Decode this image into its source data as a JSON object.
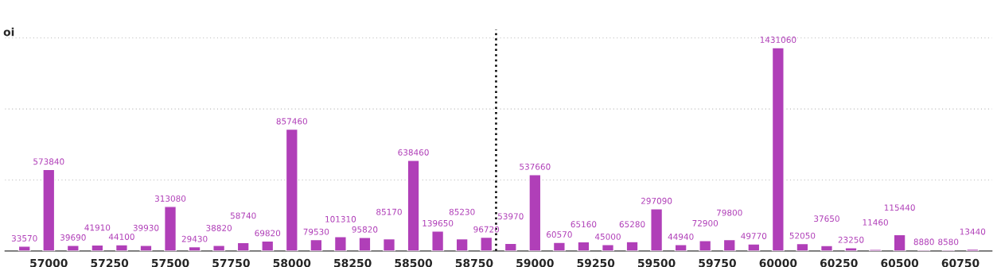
{
  "chart_data": {
    "type": "bar",
    "ylabel": "oi",
    "x": [
      56900,
      57000,
      57100,
      57200,
      57300,
      57400,
      57500,
      57600,
      57700,
      57800,
      57900,
      58000,
      58100,
      58200,
      58300,
      58400,
      58500,
      58600,
      58700,
      58800,
      58900,
      59000,
      59100,
      59200,
      59300,
      59400,
      59500,
      59600,
      59700,
      59800,
      59900,
      60000,
      60100,
      60200,
      60300,
      60400,
      60500,
      60600,
      60700,
      60800
    ],
    "values": [
      33570,
      573840,
      39690,
      41910,
      44100,
      39930,
      313080,
      29430,
      38820,
      58740,
      69820,
      857460,
      79530,
      101310,
      95820,
      85170,
      638460,
      139650,
      85230,
      96720,
      53970,
      537660,
      60570,
      65160,
      45000,
      65280,
      297090,
      44940,
      72900,
      79800,
      49770,
      1431060,
      52050,
      37650,
      23250,
      11460,
      115440,
      8880,
      8580,
      13440
    ],
    "color": "#b03fb8",
    "data_labels": true,
    "xlim": [
      56820,
      60880
    ],
    "xticks": [
      57000,
      57250,
      57500,
      57750,
      58000,
      58250,
      58500,
      58750,
      59000,
      59250,
      59500,
      59750,
      60000,
      60250,
      60500,
      60750
    ],
    "ylim": [
      0,
      1560000
    ],
    "yticks": [
      {
        "value": 500000,
        "label": null
      },
      {
        "value": 1000000,
        "label": null
      },
      {
        "value": 1500000,
        "label": null
      }
    ],
    "grid": "y",
    "ref_lines": [
      {
        "axis": "x",
        "value": 58840,
        "color": "#000000",
        "line_style": "dotted"
      }
    ]
  }
}
